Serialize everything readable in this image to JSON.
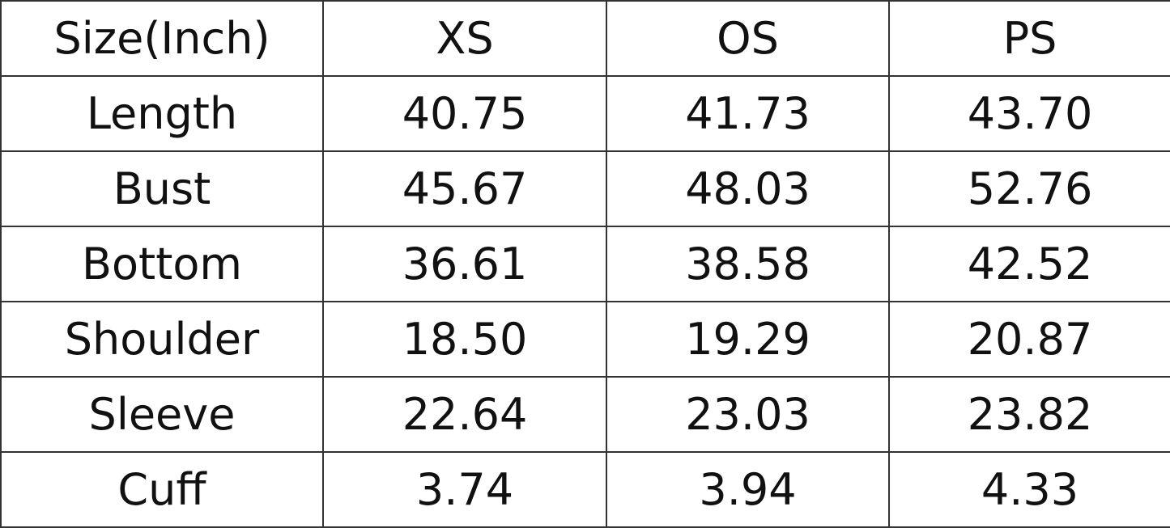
{
  "table": {
    "header": [
      "Size(Inch)",
      "XS",
      "OS",
      "PS"
    ],
    "rows": [
      [
        "Length",
        "40.75",
        "41.73",
        "43.70"
      ],
      [
        "Bust",
        "45.67",
        "48.03",
        "52.76"
      ],
      [
        "Bottom",
        "36.61",
        "38.58",
        "42.52"
      ],
      [
        "Shoulder",
        "18.50",
        "19.29",
        "20.87"
      ],
      [
        "Sleeve",
        "22.64",
        "23.03",
        "23.82"
      ],
      [
        "Cuff",
        "3.74",
        "3.94",
        "4.33"
      ]
    ]
  }
}
